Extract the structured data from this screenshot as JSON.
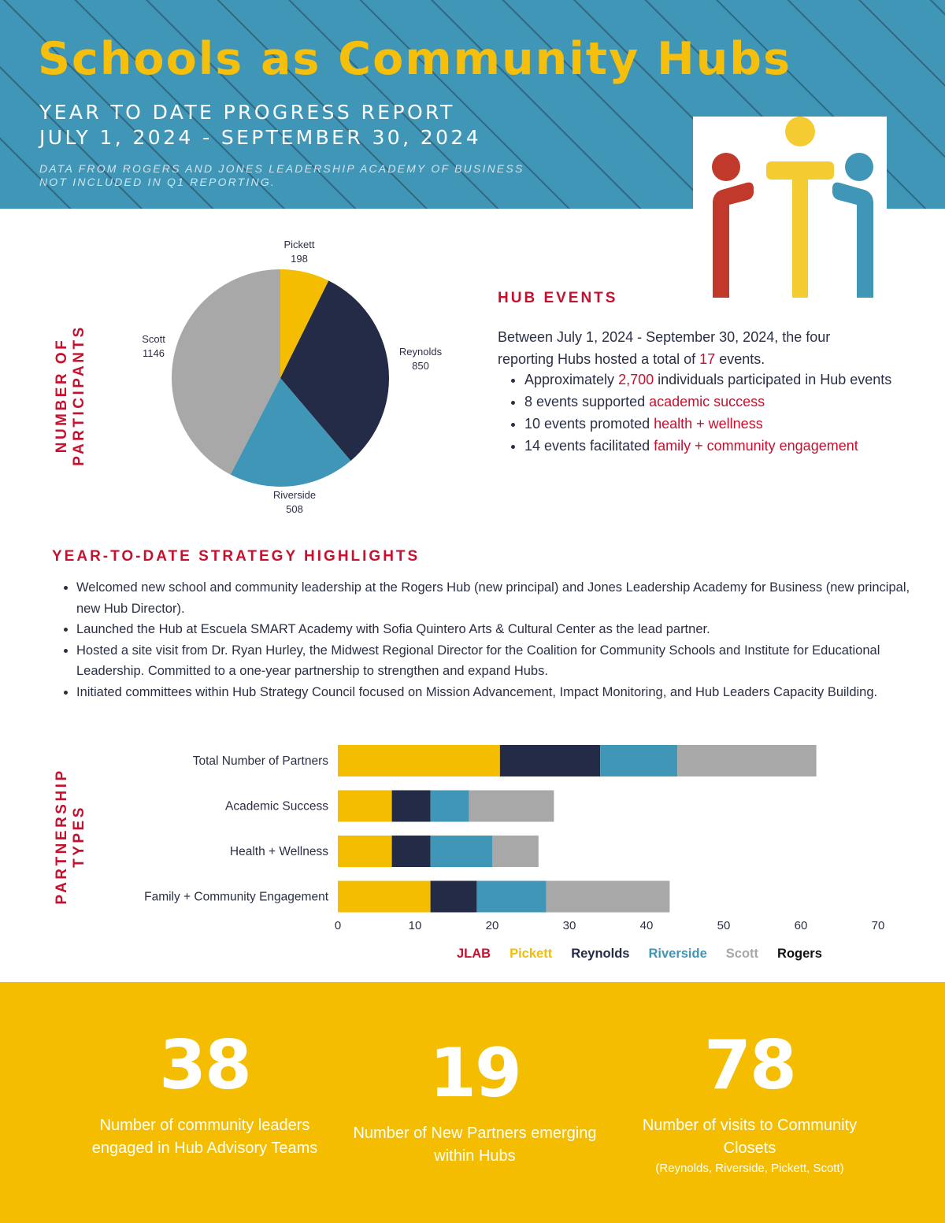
{
  "header": {
    "title": "Schools as Community Hubs",
    "subtitle_line1": "YEAR TO DATE PROGRESS REPORT",
    "subtitle_line2": "JULY 1, 2024 - SEPTEMBER 30, 2024",
    "note_line1": "DATA FROM ROGERS AND JONES LEADERSHIP ACADEMY OF BUSINESS",
    "note_line2": "NOT INCLUDED IN Q1 REPORTING.",
    "logo_colors": [
      "#c0392b",
      "#f5cb32",
      "#3f96b6"
    ]
  },
  "participants": {
    "axis_label_line1": "NUMBER OF",
    "axis_label_line2": "PARTICIPANTS"
  },
  "partnership": {
    "axis_label_line1": "PARTNERSHIP",
    "axis_label_line2": "TYPES"
  },
  "hub_events": {
    "heading": "HUB EVENTS",
    "intro_a": "Between July 1, 2024 - September 30, 2024, the four reporting Hubs hosted a total of ",
    "intro_num": "17",
    "intro_b": " events.",
    "items": [
      {
        "a": "Approximately ",
        "hl": "2,700",
        "b": " individuals participated in Hub events"
      },
      {
        "a": "8 events supported ",
        "hl": "academic success",
        "b": ""
      },
      {
        "a": "10 events promoted ",
        "hl": "health + wellness",
        "b": ""
      },
      {
        "a": "14 events facilitated ",
        "hl": "family + community engagement",
        "b": ""
      }
    ]
  },
  "strategy": {
    "heading": "YEAR-TO-DATE STRATEGY HIGHLIGHTS",
    "items": [
      "Welcomed new school and community leadership at the Rogers Hub (new principal) and Jones Leadership Academy for Business (new principal, new Hub Director).",
      "Launched the Hub at Escuela SMART Academy with Sofia Quintero Arts & Cultural Center as the lead partner.",
      "Hosted a site visit from Dr. Ryan Hurley, the Midwest Regional Director for the Coalition for Community Schools and Institute for Educational Leadership.  Committed to a one-year partnership to strengthen and expand Hubs.",
      "Initiated committees within Hub Strategy Council focused on Mission Advancement, Impact Monitoring, and Hub Leaders Capacity Building."
    ]
  },
  "legend": [
    {
      "name": "JLAB",
      "color": "#c8102e"
    },
    {
      "name": "Pickett",
      "color": "#f4bd00"
    },
    {
      "name": "Reynolds",
      "color": "#232b47"
    },
    {
      "name": "Riverside",
      "color": "#3f96b6"
    },
    {
      "name": "Scott",
      "color": "#a8a8a8"
    },
    {
      "name": "Rogers",
      "color": "#111111"
    }
  ],
  "chart_data": [
    {
      "type": "pie",
      "slices": [
        {
          "label": "Pickett",
          "value": 198,
          "color": "#f4bd00"
        },
        {
          "label": "Reynolds",
          "value": 850,
          "color": "#232b47"
        },
        {
          "label": "Riverside",
          "value": 508,
          "color": "#3f96b6"
        },
        {
          "label": "Scott",
          "value": 1146,
          "color": "#a8a8a8"
        }
      ]
    },
    {
      "type": "bar",
      "orientation": "horizontal",
      "stacked": true,
      "categories": [
        "Total Number of Partners",
        "Academic Success",
        "Health + Wellness",
        "Family + Community Engagement"
      ],
      "series": [
        {
          "name": "Pickett",
          "color": "#f4bd00",
          "values": [
            21,
            7,
            7,
            12
          ]
        },
        {
          "name": "Reynolds",
          "color": "#232b47",
          "values": [
            13,
            5,
            5,
            6
          ]
        },
        {
          "name": "Riverside",
          "color": "#3f96b6",
          "values": [
            10,
            5,
            8,
            9
          ]
        },
        {
          "name": "Scott",
          "color": "#a8a8a8",
          "values": [
            18,
            11,
            6,
            16
          ]
        }
      ],
      "xlim": [
        0,
        70
      ],
      "xticks": [
        0,
        10,
        20,
        30,
        40,
        50,
        60,
        70
      ],
      "grid": false
    }
  ],
  "stats": [
    {
      "num": "38",
      "label": "Number of community leaders engaged in Hub Advisory Teams",
      "note": ""
    },
    {
      "num": "19",
      "label": "Number of New Partners emerging within Hubs",
      "note": ""
    },
    {
      "num": "78",
      "label": "Number of visits to Community Closets",
      "note": "(Reynolds, Riverside, Pickett, Scott)"
    }
  ]
}
